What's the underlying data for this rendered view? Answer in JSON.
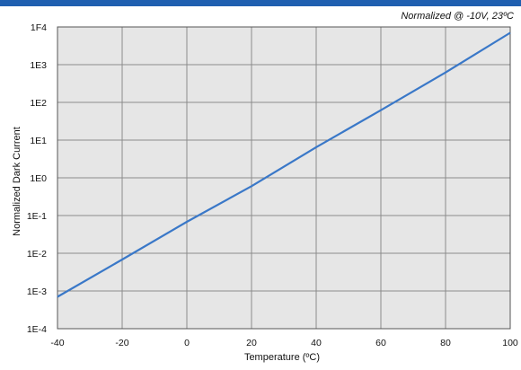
{
  "chart_data": {
    "type": "line",
    "annotation": "Normalized @ -10V, 23ºC",
    "xlabel": "Temperature (ºC)",
    "ylabel": "Normalized Dark Current",
    "xlim": [
      -40,
      100
    ],
    "ylim": [
      0.0001,
      10000
    ],
    "yscale": "log",
    "grid": true,
    "x_tick_labels": [
      "-40",
      "-20",
      "0",
      "20",
      "40",
      "60",
      "80",
      "100"
    ],
    "x_tick_values": [
      -40,
      -20,
      0,
      20,
      40,
      60,
      80,
      100
    ],
    "y_tick_labels": [
      "1E-4",
      "1E-3",
      "1E-2",
      "1E-1",
      "1E0",
      "1E1",
      "1E2",
      "1E3",
      "1F4"
    ],
    "y_tick_values": [
      0.0001,
      0.001,
      0.01,
      0.1,
      1,
      10,
      100,
      1000,
      10000
    ],
    "series": [
      {
        "x": [
          -40,
          -20,
          0,
          20,
          40,
          60,
          80,
          100
        ],
        "y": [
          0.0007,
          0.0068,
          0.068,
          0.6,
          6.5,
          62,
          620,
          7000
        ]
      }
    ],
    "colors": {
      "line": "#3a78c8",
      "plot_bg": "#e6e6e6",
      "grid": "#8c8c8c",
      "banner": "#1f5fb0"
    }
  }
}
